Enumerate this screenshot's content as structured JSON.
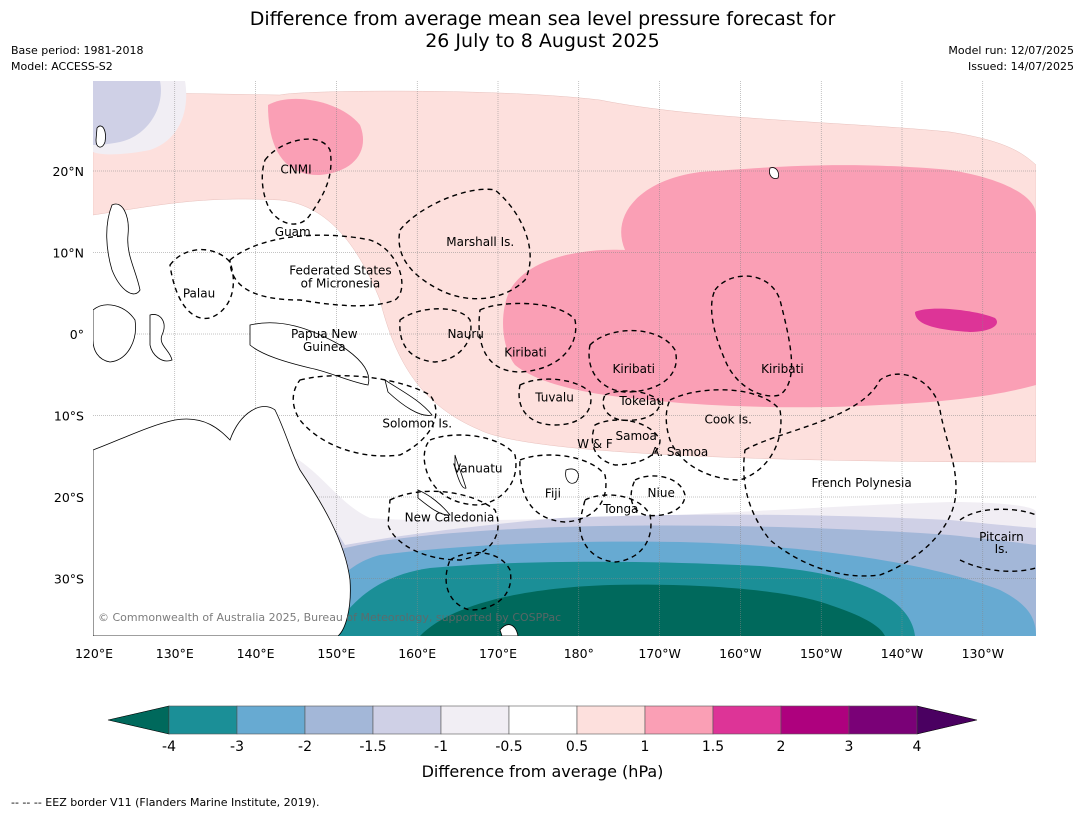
{
  "header": {
    "title_line1": "Difference from average mean sea level pressure forecast for",
    "title_line2": "26 July to 8 August 2025",
    "base_period": "Base period: 1981-2018",
    "model": "Model: ACCESS-S2",
    "model_run": "Model run: 12/07/2025",
    "issued": "Issued: 14/07/2025"
  },
  "map": {
    "lon_labels": [
      "120°E",
      "130°E",
      "140°E",
      "150°E",
      "160°E",
      "170°E",
      "180°",
      "170°W",
      "160°W",
      "150°W",
      "140°W",
      "130°W"
    ],
    "lat_labels": [
      "20°N",
      "10°N",
      "0°",
      "10°S",
      "20°S",
      "30°S"
    ],
    "regions": [
      {
        "name": "CNMI",
        "lon": 145.0,
        "lat": 20.2
      },
      {
        "name": "Guam",
        "lon": 144.6,
        "lat": 12.5
      },
      {
        "name": "Marshall Is.",
        "lon": 167.8,
        "lat": 11.3
      },
      {
        "name": "Federated States",
        "lon": 150.5,
        "lat": 7.8
      },
      {
        "name": "of Micronesia",
        "lon": 150.5,
        "lat": 6.2
      },
      {
        "name": "Palau",
        "lon": 133.0,
        "lat": 5.0
      },
      {
        "name": "Papua New",
        "lon": 148.5,
        "lat": 0.0
      },
      {
        "name": "Guinea",
        "lon": 148.5,
        "lat": -1.6
      },
      {
        "name": "Nauru",
        "lon": 166.0,
        "lat": 0.0
      },
      {
        "name": "Kiribati",
        "lon": 173.4,
        "lat": -2.3
      },
      {
        "name": "Kiribati",
        "lon": -173.2,
        "lat": -4.3
      },
      {
        "name": "Kiribati",
        "lon": -154.8,
        "lat": -4.3
      },
      {
        "name": "Tuvalu",
        "lon": 177.0,
        "lat": -7.8
      },
      {
        "name": "Tokelau",
        "lon": -172.2,
        "lat": -8.2
      },
      {
        "name": "Solomon Is.",
        "lon": 160.0,
        "lat": -11.0
      },
      {
        "name": "Cook Is.",
        "lon": -161.5,
        "lat": -10.5
      },
      {
        "name": "Samoa",
        "lon": -172.9,
        "lat": -12.5
      },
      {
        "name": "W & F",
        "lon": -178.0,
        "lat": -13.5
      },
      {
        "name": "A. Samoa",
        "lon": -167.5,
        "lat": -14.5
      },
      {
        "name": "Vanuatu",
        "lon": 167.5,
        "lat": -16.5
      },
      {
        "name": "Fiji",
        "lon": 176.8,
        "lat": -19.6
      },
      {
        "name": "Niue",
        "lon": -169.8,
        "lat": -19.5
      },
      {
        "name": "French Polynesia",
        "lon": -145.0,
        "lat": -18.3
      },
      {
        "name": "Tonga",
        "lon": -174.8,
        "lat": -21.5
      },
      {
        "name": "New Caledonia",
        "lon": 164.0,
        "lat": -22.5
      },
      {
        "name": "Pitcairn",
        "lon": -127.7,
        "lat": -24.9
      },
      {
        "name": "Is.",
        "lon": -127.7,
        "lat": -26.4
      }
    ],
    "copyright": "© Commonwealth of Australia 2025, Bureau of Meteorology, supported by COSPPac"
  },
  "colorbar": {
    "label": "Difference from average (hPa)",
    "ticks": [
      "-4",
      "-3",
      "-2",
      "-1.5",
      "-1",
      "-0.5",
      "0.5",
      "1",
      "1.5",
      "2",
      "3",
      "4"
    ],
    "low_extend_color": "#00695c",
    "high_extend_color": "#4a0061",
    "bin_colors": [
      "#1b8f97",
      "#67aad2",
      "#a3b7d8",
      "#cfd0e6",
      "#f1eef4",
      "#ffffff",
      "#fde0dd",
      "#fa9fb5",
      "#dd3497",
      "#ae017e",
      "#7a0177"
    ]
  },
  "footer": {
    "eez_note": "--  --  -- EEZ border V11 (Flanders Marine Institute, 2019)."
  }
}
